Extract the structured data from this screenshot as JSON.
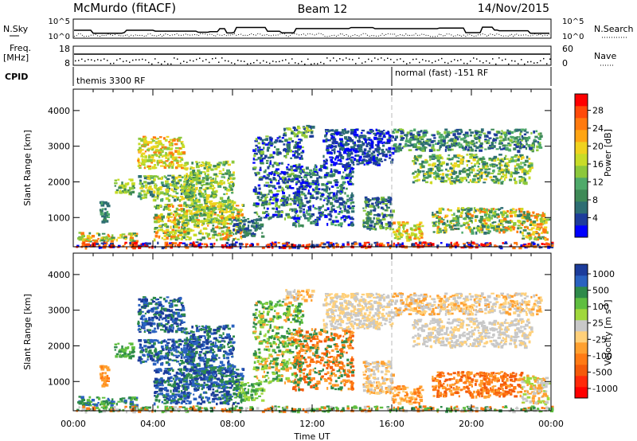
{
  "header": {
    "station": "McMurdo (fitACF)",
    "beam": "Beam 12",
    "date": "14/Nov/2015"
  },
  "top_panels": {
    "nsky_label": "N.Sky",
    "nsearch_label": "N.Search",
    "nsky_ticks": [
      "10^5",
      "10^0"
    ],
    "nsearch_ticks": [
      "10^5",
      "10^0"
    ],
    "freq_label": "Freq.",
    "freq_unit": "[MHz]",
    "freq_ticks": [
      "18",
      "8"
    ],
    "nave_label": "Nave",
    "nave_ticks": [
      "60",
      "0"
    ],
    "cpid_label": "CPID",
    "cpid_segments": [
      {
        "label": "themis 3300 RF",
        "start": "00:00",
        "end": "16:00"
      },
      {
        "label": "normal (fast) -151 RF",
        "start": "16:00",
        "end": "24:00"
      }
    ]
  },
  "chart_data": [
    {
      "type": "heatmap",
      "name": "power-panel",
      "ylabel": "Slant Range [km]",
      "xlabel": "",
      "ylim": [
        180,
        4600
      ],
      "xlim": [
        0,
        24
      ],
      "yticks": [
        "1000",
        "2000",
        "3000",
        "4000"
      ],
      "colorbar": {
        "label": "Power [dB]",
        "ticks": [
          "4",
          "8",
          "12",
          "16",
          "20",
          "24",
          "28"
        ],
        "colors": [
          "#0000ff",
          "#1e3c9b",
          "#2e6e73",
          "#3f8a57",
          "#4faa6a",
          "#8cc83c",
          "#c8dc28",
          "#f0d21e",
          "#ffa514",
          "#ff7a0f",
          "#ff4a0a",
          "#ff0000"
        ]
      },
      "blobs": [
        {
          "t0": 0.2,
          "t1": 3.2,
          "r0": 350,
          "r1": 600,
          "c": [
            5,
            7,
            3,
            9
          ]
        },
        {
          "t0": 1.3,
          "t1": 1.8,
          "r0": 900,
          "r1": 1500,
          "c": [
            2,
            3,
            4
          ]
        },
        {
          "t0": 2.0,
          "t1": 3.0,
          "r0": 1700,
          "r1": 2100,
          "c": [
            3,
            5,
            6
          ]
        },
        {
          "t0": 3.2,
          "t1": 5.5,
          "r0": 2400,
          "r1": 3300,
          "c": [
            5,
            6,
            7,
            9
          ]
        },
        {
          "t0": 3.2,
          "t1": 6.0,
          "r0": 1500,
          "r1": 2200,
          "c": [
            2,
            4,
            5,
            6,
            7
          ]
        },
        {
          "t0": 4.0,
          "t1": 8.5,
          "r0": 400,
          "r1": 1400,
          "c": [
            3,
            5,
            6,
            7,
            9
          ]
        },
        {
          "t0": 5.5,
          "t1": 8.0,
          "r0": 900,
          "r1": 2600,
          "c": [
            3,
            4,
            5,
            6,
            7
          ]
        },
        {
          "t0": 8.0,
          "t1": 9.5,
          "r0": 500,
          "r1": 1000,
          "c": [
            1,
            2,
            3
          ]
        },
        {
          "t0": 9.0,
          "t1": 11.5,
          "r0": 1000,
          "r1": 3300,
          "c": [
            0,
            1,
            2,
            3,
            5
          ]
        },
        {
          "t0": 10.5,
          "t1": 12.0,
          "r0": 3300,
          "r1": 3600,
          "c": [
            1,
            2,
            5,
            6
          ]
        },
        {
          "t0": 11.0,
          "t1": 14.0,
          "r0": 800,
          "r1": 2500,
          "c": [
            0,
            1,
            2,
            3,
            4
          ]
        },
        {
          "t0": 12.5,
          "t1": 16.0,
          "r0": 2500,
          "r1": 3500,
          "c": [
            0,
            1,
            2
          ]
        },
        {
          "t0": 14.5,
          "t1": 16.0,
          "r0": 700,
          "r1": 1600,
          "c": [
            1,
            2,
            3,
            5
          ]
        },
        {
          "t0": 16.0,
          "t1": 17.5,
          "r0": 400,
          "r1": 900,
          "c": [
            5,
            6,
            7,
            9
          ]
        },
        {
          "t0": 16.0,
          "t1": 23.5,
          "r0": 2900,
          "r1": 3500,
          "c": [
            1,
            2,
            3,
            4,
            5
          ]
        },
        {
          "t0": 17.0,
          "t1": 23.0,
          "r0": 2000,
          "r1": 2800,
          "c": [
            2,
            3,
            4,
            5,
            6,
            7
          ]
        },
        {
          "t0": 18.0,
          "t1": 22.5,
          "r0": 600,
          "r1": 1300,
          "c": [
            2,
            3,
            4,
            5,
            6,
            7,
            9
          ]
        },
        {
          "t0": 22.5,
          "t1": 23.8,
          "r0": 400,
          "r1": 1200,
          "c": [
            3,
            5,
            7,
            9
          ]
        },
        {
          "t0": 0.0,
          "t1": 24.0,
          "r0": 180,
          "r1": 330,
          "c": [
            0,
            1,
            9,
            10,
            11
          ]
        }
      ]
    },
    {
      "type": "heatmap",
      "name": "velocity-panel",
      "ylabel": "Slant Range [km]",
      "xlabel": "Time UT",
      "ylim": [
        180,
        4600
      ],
      "xlim": [
        0,
        24
      ],
      "yticks": [
        "1000",
        "2000",
        "3000",
        "4000"
      ],
      "xticks": [
        "00:00",
        "04:00",
        "08:00",
        "12:00",
        "16:00",
        "20:00",
        "00:00"
      ],
      "colorbar": {
        "label": "Velocity [m s",
        "label_sup": "-1",
        "label_close": "]",
        "ticks": [
          "1000",
          "500",
          "100",
          "25",
          "-25",
          "-100",
          "-500",
          "-1000"
        ],
        "colors": [
          "#1c3c9b",
          "#2a62c0",
          "#2e8a4a",
          "#5fbe40",
          "#a0d83c",
          "#c8c8c8",
          "#ffd07a",
          "#ffa030",
          "#ff7a14",
          "#f45a0a",
          "#ff2a0a",
          "#ff0000"
        ]
      },
      "blobs": [
        {
          "t0": 0.2,
          "t1": 3.2,
          "r0": 350,
          "r1": 600,
          "c": [
            2,
            3,
            1
          ]
        },
        {
          "t0": 1.3,
          "t1": 1.8,
          "r0": 900,
          "r1": 1500,
          "c": [
            7,
            8
          ]
        },
        {
          "t0": 2.0,
          "t1": 3.0,
          "r0": 1700,
          "r1": 2100,
          "c": [
            2,
            3
          ]
        },
        {
          "t0": 3.2,
          "t1": 5.5,
          "r0": 2400,
          "r1": 3400,
          "c": [
            0,
            1,
            2
          ]
        },
        {
          "t0": 3.2,
          "t1": 6.0,
          "r0": 1500,
          "r1": 2200,
          "c": [
            0,
            1,
            2
          ]
        },
        {
          "t0": 4.0,
          "t1": 8.5,
          "r0": 400,
          "r1": 1400,
          "c": [
            0,
            1,
            2
          ]
        },
        {
          "t0": 5.5,
          "t1": 8.0,
          "r0": 900,
          "r1": 2600,
          "c": [
            0,
            1,
            2
          ]
        },
        {
          "t0": 8.0,
          "t1": 9.5,
          "r0": 500,
          "r1": 1000,
          "c": [
            2,
            3,
            4
          ]
        },
        {
          "t0": 9.0,
          "t1": 11.5,
          "r0": 1000,
          "r1": 3300,
          "c": [
            2,
            3,
            4,
            7
          ]
        },
        {
          "t0": 10.5,
          "t1": 12.0,
          "r0": 3300,
          "r1": 3600,
          "c": [
            5,
            6,
            7
          ]
        },
        {
          "t0": 11.0,
          "t1": 14.0,
          "r0": 800,
          "r1": 2500,
          "c": [
            7,
            8,
            9,
            2
          ]
        },
        {
          "t0": 12.5,
          "t1": 16.0,
          "r0": 2500,
          "r1": 3500,
          "c": [
            5,
            6
          ]
        },
        {
          "t0": 14.5,
          "t1": 16.0,
          "r0": 700,
          "r1": 1600,
          "c": [
            5,
            6,
            7
          ]
        },
        {
          "t0": 16.0,
          "t1": 17.5,
          "r0": 400,
          "r1": 900,
          "c": [
            6,
            7,
            8
          ]
        },
        {
          "t0": 16.0,
          "t1": 23.5,
          "r0": 2900,
          "r1": 3500,
          "c": [
            5,
            6,
            7
          ]
        },
        {
          "t0": 17.0,
          "t1": 23.0,
          "r0": 2000,
          "r1": 2800,
          "c": [
            5,
            5,
            6
          ]
        },
        {
          "t0": 18.0,
          "t1": 22.5,
          "r0": 600,
          "r1": 1300,
          "c": [
            7,
            8,
            9
          ]
        },
        {
          "t0": 22.5,
          "t1": 23.8,
          "r0": 400,
          "r1": 1200,
          "c": [
            4,
            5,
            7
          ]
        },
        {
          "t0": 0.0,
          "t1": 24.0,
          "r0": 180,
          "r1": 330,
          "c": [
            2,
            3,
            5,
            8
          ]
        }
      ]
    }
  ]
}
